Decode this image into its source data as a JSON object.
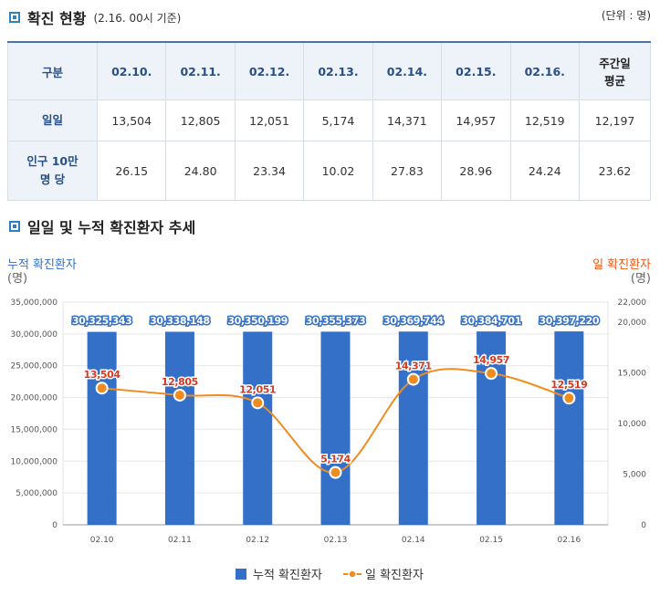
{
  "section1": {
    "title": "확진 현황",
    "subtitle": "(2.16. 00시 기준)",
    "unit": "(단위 : 명)"
  },
  "table": {
    "corner": "구분",
    "dates": [
      "02.10.",
      "02.11.",
      "02.12.",
      "02.13.",
      "02.14.",
      "02.15.",
      "02.16."
    ],
    "avg_header": [
      "주간일",
      "평균"
    ],
    "row1_label": "일일",
    "row1": [
      "13,504",
      "12,805",
      "12,051",
      "5,174",
      "14,371",
      "14,957",
      "12,519",
      "12,197"
    ],
    "row2_label": [
      "인구 10만",
      "명 당"
    ],
    "row2": [
      "26.15",
      "24.80",
      "23.34",
      "10.02",
      "27.83",
      "28.96",
      "24.24",
      "23.62"
    ]
  },
  "section2": {
    "title": "일일 및 누적 확진환자 추세"
  },
  "chart_data": {
    "type": "bar+line",
    "categories": [
      "02.10",
      "02.11",
      "02.12",
      "02.13",
      "02.14",
      "02.15",
      "02.16"
    ],
    "series": [
      {
        "name": "누적 확진환자",
        "type": "bar",
        "axis": "left",
        "values": [
          30325343,
          30338148,
          30350199,
          30355373,
          30369744,
          30384701,
          30397220
        ],
        "labels": [
          "30,325,343",
          "30,338,148",
          "30,350,199",
          "30,355,373",
          "30,369,744",
          "30,384,701",
          "30,397,220"
        ],
        "color": "#3570c8"
      },
      {
        "name": "일 확진환자",
        "type": "line",
        "axis": "right",
        "values": [
          13504,
          12805,
          12051,
          5174,
          14371,
          14957,
          12519
        ],
        "labels": [
          "13,504",
          "12,805",
          "12,051",
          "5,174",
          "14,371",
          "14,957",
          "12,519"
        ],
        "color": "#f08c1e"
      }
    ],
    "left_axis": {
      "title": "누적 확진환자",
      "unit": "(명)",
      "ylim": [
        0,
        35000000
      ],
      "ticks": [
        0,
        5000000,
        10000000,
        15000000,
        20000000,
        25000000,
        30000000,
        35000000
      ],
      "tick_labels": [
        "0",
        "5,000,000",
        "10,000,000",
        "15,000,000",
        "20,000,000",
        "25,000,000",
        "30,000,000",
        "35,000,000"
      ],
      "color": "#3570c8"
    },
    "right_axis": {
      "title": "일 확진환자",
      "unit": "(명)",
      "ylim": [
        0,
        22000
      ],
      "ticks": [
        0,
        5000,
        10000,
        15000,
        20000,
        22000
      ],
      "tick_labels": [
        "0",
        "5,000",
        "10,000",
        "15,000",
        "20,000",
        "22,000"
      ],
      "color": "#e85a1c"
    },
    "grid": true,
    "legend_position": "bottom"
  }
}
